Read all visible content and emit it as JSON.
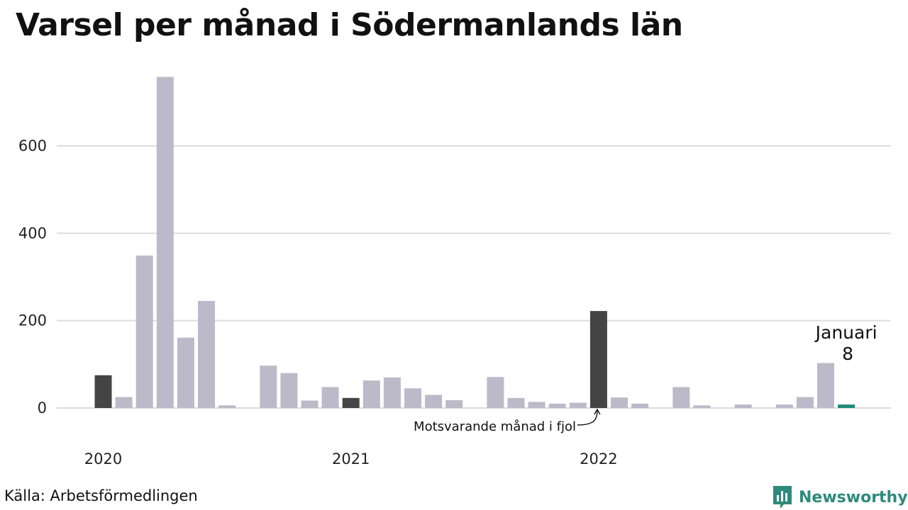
{
  "title": "Varsel per månad i Södermanlands län",
  "source": "Källa: Arbetsförmedlingen",
  "brand": {
    "name": "Newsworthy",
    "icon": "newsworthy-logo-icon",
    "color": "#2e8a7c"
  },
  "colors": {
    "default_bar": "#bcbac8",
    "same_month_bar": "#444444",
    "latest_bar": "#1f8a78",
    "grid": "#dddddd"
  },
  "chart_data": {
    "type": "bar",
    "title": "Varsel per månad i Södermanlands län",
    "xlabel": "",
    "ylabel": "",
    "ylim": [
      0,
      760
    ],
    "yticks": [
      0,
      200,
      400,
      600
    ],
    "grid": true,
    "year_labels": [
      "2020",
      "2021",
      "2022"
    ],
    "annotation": "Motsvarande månad i fjol",
    "latest_label": {
      "month": "Januari",
      "value": "8"
    },
    "months": [
      "2020-01",
      "2020-02",
      "2020-03",
      "2020-04",
      "2020-05",
      "2020-06",
      "2020-07",
      "2020-08",
      "2020-09",
      "2020-10",
      "2020-11",
      "2020-12",
      "2021-01",
      "2021-02",
      "2021-03",
      "2021-04",
      "2021-05",
      "2021-06",
      "2021-07",
      "2021-08",
      "2021-09",
      "2021-10",
      "2021-11",
      "2021-12",
      "2022-01",
      "2022-02",
      "2022-03",
      "2022-04",
      "2022-05",
      "2022-06",
      "2022-07",
      "2022-08",
      "2022-09",
      "2022-10",
      "2022-11",
      "2022-12",
      "2023-01"
    ],
    "values": [
      75,
      25,
      349,
      758,
      161,
      245,
      6,
      0,
      97,
      80,
      17,
      48,
      23,
      63,
      70,
      45,
      30,
      18,
      0,
      71,
      23,
      14,
      10,
      12,
      222,
      24,
      10,
      0,
      48,
      6,
      0,
      8,
      0,
      8,
      25,
      103,
      8
    ],
    "highlight": {
      "same_month_last_years": [
        "2020-01",
        "2021-01",
        "2022-01"
      ],
      "latest": "2023-01"
    }
  }
}
